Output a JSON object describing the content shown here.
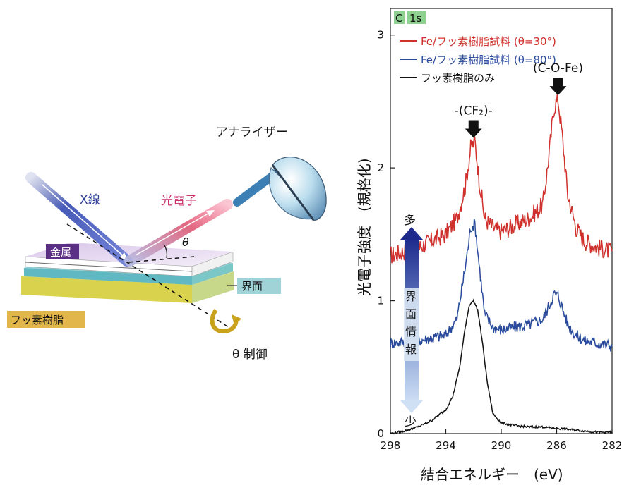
{
  "diagram": {
    "label_xray": "X線",
    "label_photoelectron": "光電子",
    "label_analyzer": "アナライザー",
    "label_theta": "θ",
    "label_metal": "金属",
    "label_interface": "界面",
    "label_fluororesin": "フッ素樹脂",
    "label_theta_control": "θ 制御"
  },
  "chart_data": {
    "type": "line",
    "panel_label_element": "C",
    "panel_label_orbital": "1s",
    "xlabel": "結合エネルギー　(eV)",
    "ylabel": "光電子強度　(規格化)",
    "xlim": [
      298,
      282
    ],
    "ylim": [
      0,
      3.2
    ],
    "xticks": [
      "298",
      "294",
      "290",
      "286",
      "282"
    ],
    "yticks": [
      "0",
      "1",
      "2",
      "3"
    ],
    "series": [
      {
        "name": "Fe/フッ素樹脂試料 (θ=30°)",
        "color": "#d0312d",
        "x": [
          298,
          296,
          294,
          293.2,
          292.6,
          292.2,
          291.9,
          291.6,
          291.2,
          290.6,
          290,
          289,
          288,
          287,
          286.6,
          286.2,
          285.9,
          285.6,
          285.2,
          284.6,
          284,
          283,
          282
        ],
        "y": [
          1.34,
          1.4,
          1.5,
          1.62,
          1.86,
          2.15,
          2.2,
          1.92,
          1.62,
          1.55,
          1.52,
          1.57,
          1.62,
          1.72,
          2.05,
          2.45,
          2.52,
          2.25,
          1.8,
          1.55,
          1.45,
          1.4,
          1.37
        ]
      },
      {
        "name": "Fe/フッ素樹脂試料 (θ=80°)",
        "color": "#2a4b9b",
        "x": [
          298,
          296,
          294,
          293.2,
          292.6,
          292.2,
          291.9,
          291.6,
          291.2,
          290.6,
          290,
          289,
          288,
          287,
          286.6,
          286.2,
          285.9,
          285.6,
          285.2,
          284.6,
          284,
          283,
          282
        ],
        "y": [
          0.68,
          0.7,
          0.74,
          0.86,
          1.25,
          1.55,
          1.58,
          1.28,
          0.9,
          0.8,
          0.78,
          0.8,
          0.82,
          0.86,
          0.95,
          1.05,
          1.04,
          0.95,
          0.82,
          0.74,
          0.7,
          0.68,
          0.66
        ]
      },
      {
        "name": "フッ素樹脂のみ",
        "color": "#111111",
        "x": [
          298,
          297,
          296,
          295,
          294.5,
          294,
          293.5,
          293,
          292.6,
          292.3,
          292,
          291.7,
          291.4,
          291,
          290.6,
          290,
          289,
          288,
          287,
          286,
          285,
          284,
          283,
          282
        ],
        "y": [
          0.0,
          0.02,
          0.05,
          0.1,
          0.14,
          0.18,
          0.28,
          0.5,
          0.8,
          0.97,
          1.0,
          0.93,
          0.72,
          0.38,
          0.15,
          0.08,
          0.06,
          0.05,
          0.05,
          0.04,
          0.03,
          0.02,
          0.01,
          0.01
        ]
      }
    ],
    "annotations": {
      "cf2_label": "-(CF₂)-",
      "cf2_x": 292,
      "cf2_y": 2.2,
      "cofe_label": "(C-O-Fe)",
      "cofe_x": 285.9,
      "cofe_y": 2.52
    },
    "side_arrow": {
      "top_label": "多",
      "middle_labels": [
        "界",
        "面",
        "情",
        "報"
      ],
      "bottom_label": "少"
    }
  }
}
